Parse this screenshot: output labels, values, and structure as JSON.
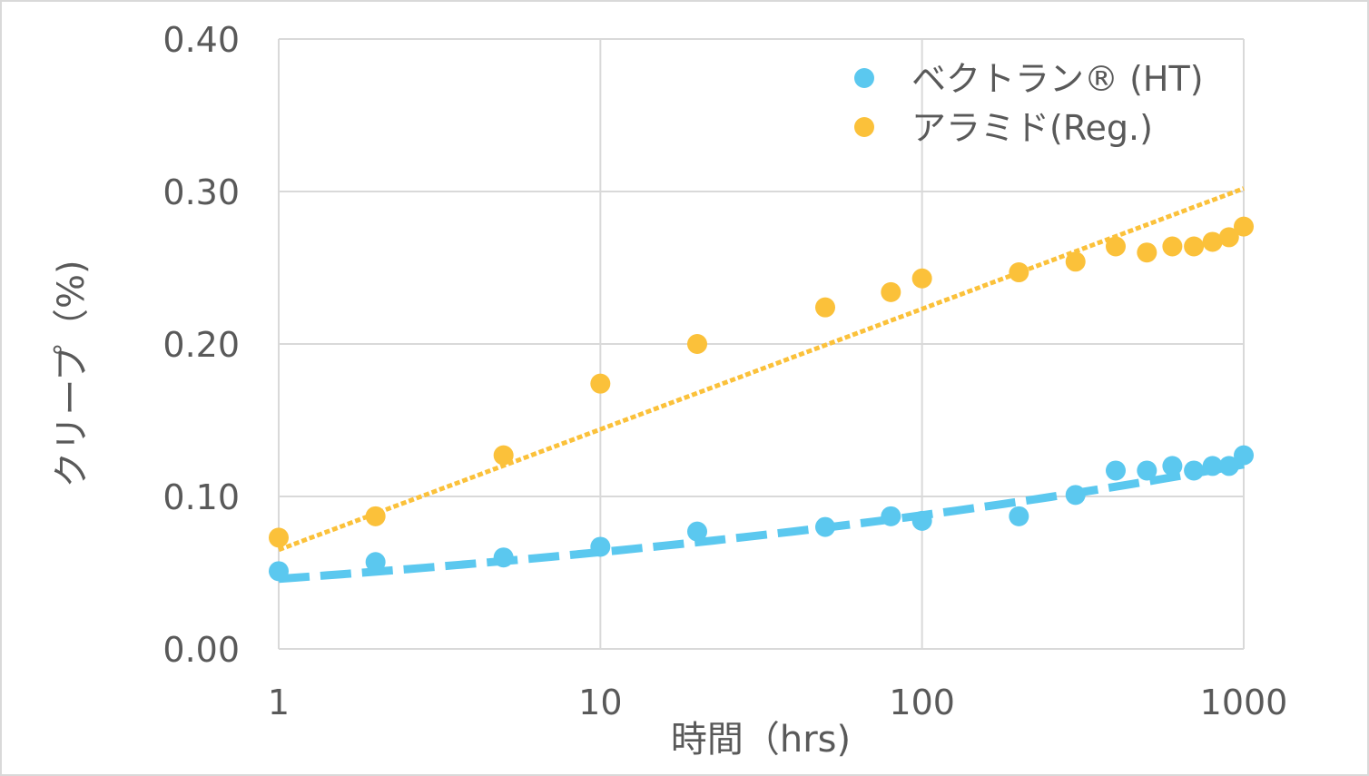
{
  "chart_data": {
    "type": "scatter",
    "title": "",
    "xlabel": "時間（hrs)",
    "ylabel": "クリープ（%)",
    "xscale": "log",
    "xlim": [
      1,
      1000
    ],
    "ylim": [
      0,
      0.4
    ],
    "xticks": [
      "1",
      "10",
      "100",
      "1000"
    ],
    "yticks": [
      "0.00",
      "0.10",
      "0.20",
      "0.30",
      "0.40"
    ],
    "grid": true,
    "legend_position": "top-right",
    "series": [
      {
        "name": "ベクトラン® (HT)",
        "color": "#5bc8ef",
        "x": [
          1,
          2,
          5,
          10,
          20,
          50,
          80,
          100,
          200,
          300,
          400,
          500,
          600,
          700,
          800,
          900,
          1000
        ],
        "y": [
          0.051,
          0.057,
          0.06,
          0.067,
          0.077,
          0.08,
          0.087,
          0.084,
          0.087,
          0.101,
          0.117,
          0.117,
          0.12,
          0.117,
          0.12,
          0.12,
          0.127
        ],
        "trendline": {
          "style": "dashed",
          "type": "power",
          "start": [
            1,
            0.046
          ],
          "end": [
            1000,
            0.121
          ]
        }
      },
      {
        "name": "アラミド(Reg.)",
        "color": "#fbc13a",
        "x": [
          1,
          2,
          5,
          10,
          20,
          50,
          80,
          100,
          200,
          300,
          400,
          500,
          600,
          700,
          800,
          900,
          1000
        ],
        "y": [
          0.073,
          0.087,
          0.127,
          0.174,
          0.2,
          0.224,
          0.234,
          0.243,
          0.247,
          0.254,
          0.264,
          0.26,
          0.264,
          0.264,
          0.267,
          0.27,
          0.277
        ],
        "trendline": {
          "style": "dotted",
          "type": "logarithmic",
          "start": [
            1,
            0.065
          ],
          "end": [
            1000,
            0.302
          ]
        }
      }
    ]
  }
}
